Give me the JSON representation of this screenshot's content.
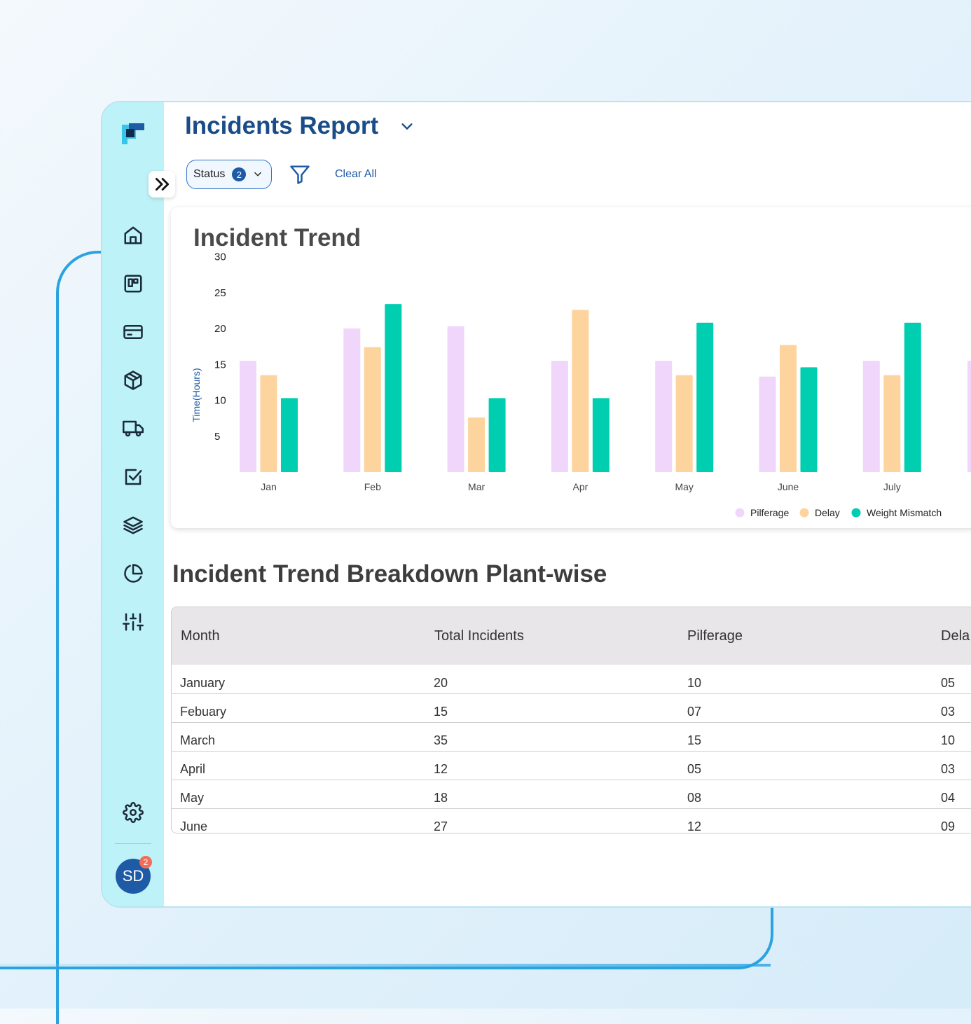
{
  "header": {
    "title": "Incidents Report"
  },
  "filters": {
    "status_label": "Status",
    "status_count": "2",
    "clear_all": "Clear All"
  },
  "sidebar": {
    "icons": [
      "home-icon",
      "board-icon",
      "card-icon",
      "box-icon",
      "truck-icon",
      "checkbox-icon",
      "layers-icon",
      "pie-chart-icon",
      "sliders-icon"
    ],
    "settings_icon": "gear-icon",
    "avatar_initials": "SD",
    "notification_count": "2"
  },
  "chart_data": {
    "type": "bar",
    "title": "Incident Trend",
    "ylabel": "Time(Hours)",
    "xlabel": "",
    "yticks": [
      5,
      10,
      15,
      20,
      25,
      30
    ],
    "ylim": [
      0,
      30
    ],
    "categories": [
      "Jan",
      "Feb",
      "Mar",
      "Apr",
      "May",
      "June",
      "July"
    ],
    "series": [
      {
        "name": "Pilferage",
        "color": "#f0d6fb",
        "values": [
          15.5,
          20,
          20.3,
          15.5,
          15.5,
          13.3,
          15.5
        ]
      },
      {
        "name": "Delay",
        "color": "#fed49e",
        "values": [
          13.5,
          17.4,
          7.6,
          22.6,
          13.5,
          17.7,
          13.5
        ]
      },
      {
        "name": "Weight Mismatch",
        "color": "#00ceb0",
        "values": [
          10.3,
          23.4,
          10.3,
          10.3,
          20.8,
          14.6,
          20.8
        ]
      }
    ],
    "legend_position": "bottom-right"
  },
  "breakdown": {
    "title": "Incident Trend Breakdown Plant-wise",
    "columns": [
      "Month",
      "Total Incidents",
      "Pilferage",
      "Dela"
    ],
    "rows": [
      [
        "January",
        "20",
        "10",
        "05"
      ],
      [
        "Febuary",
        "15",
        "07",
        "03"
      ],
      [
        "March",
        "35",
        "15",
        "10"
      ],
      [
        "April",
        "12",
        "05",
        "03"
      ],
      [
        "May",
        "18",
        "08",
        "04"
      ],
      [
        "June",
        "27",
        "12",
        "09"
      ]
    ]
  }
}
